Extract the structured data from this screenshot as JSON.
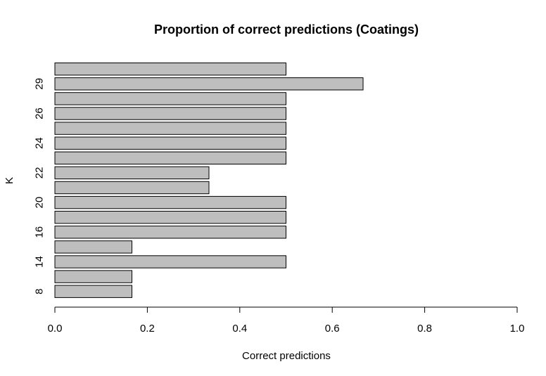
{
  "chart_data": {
    "type": "bar",
    "orientation": "horizontal",
    "title": "Proportion of correct predictions (Coatings)",
    "xlabel": "Correct predictions",
    "ylabel": "K",
    "xlim": [
      0,
      1
    ],
    "x_ticks": [
      "0.0",
      "0.2",
      "0.4",
      "0.6",
      "0.8",
      "1.0"
    ],
    "y_tick_labels_shown": [
      "8",
      "14",
      "16",
      "20",
      "22",
      "24",
      "26",
      "29"
    ],
    "grid": false,
    "bar_color": "#bebebe",
    "bars": [
      {
        "k": "8",
        "value": 0.1667
      },
      {
        "k": "",
        "value": 0.1667
      },
      {
        "k": "14",
        "value": 0.5
      },
      {
        "k": "",
        "value": 0.1667
      },
      {
        "k": "16",
        "value": 0.5
      },
      {
        "k": "",
        "value": 0.5
      },
      {
        "k": "20",
        "value": 0.5
      },
      {
        "k": "",
        "value": 0.3333
      },
      {
        "k": "22",
        "value": 0.3333
      },
      {
        "k": "",
        "value": 0.5
      },
      {
        "k": "24",
        "value": 0.5
      },
      {
        "k": "",
        "value": 0.5
      },
      {
        "k": "26",
        "value": 0.5
      },
      {
        "k": "",
        "value": 0.5
      },
      {
        "k": "29",
        "value": 0.6667
      },
      {
        "k": "",
        "value": 0.5
      }
    ]
  }
}
